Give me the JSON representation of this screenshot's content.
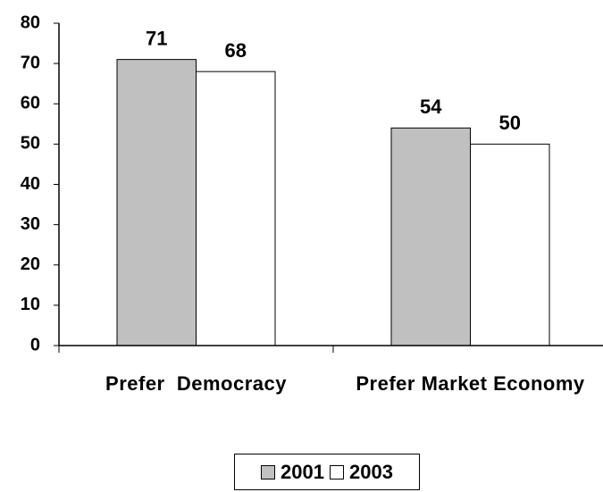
{
  "chart_data": {
    "type": "bar",
    "categories": [
      "Prefer  Democracy",
      "Prefer Market Economy"
    ],
    "series": [
      {
        "name": "2001",
        "color": "#c0c0c0",
        "values": [
          71,
          54
        ]
      },
      {
        "name": "2003",
        "color": "#ffffff",
        "values": [
          68,
          50
        ]
      }
    ],
    "ylim": [
      0,
      80
    ],
    "yticks": [
      0,
      10,
      20,
      30,
      40,
      50,
      60,
      70,
      80
    ],
    "grid": false,
    "legend": "bottom"
  }
}
